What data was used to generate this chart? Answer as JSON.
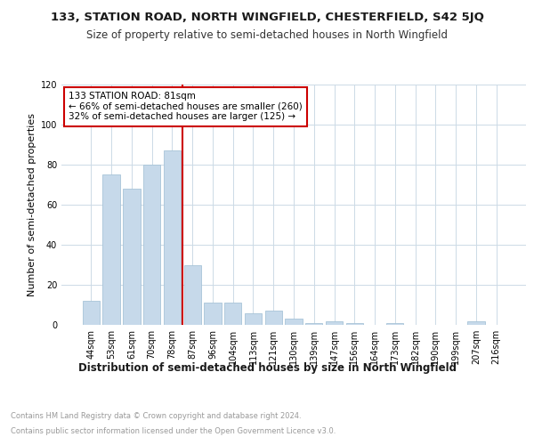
{
  "title1": "133, STATION ROAD, NORTH WINGFIELD, CHESTERFIELD, S42 5JQ",
  "title2": "Size of property relative to semi-detached houses in North Wingfield",
  "xlabel": "Distribution of semi-detached houses by size in North Wingfield",
  "ylabel": "Number of semi-detached properties",
  "categories": [
    "44sqm",
    "53sqm",
    "61sqm",
    "70sqm",
    "78sqm",
    "87sqm",
    "96sqm",
    "104sqm",
    "113sqm",
    "121sqm",
    "130sqm",
    "139sqm",
    "147sqm",
    "156sqm",
    "164sqm",
    "173sqm",
    "182sqm",
    "190sqm",
    "199sqm",
    "207sqm",
    "216sqm"
  ],
  "values": [
    12,
    75,
    68,
    80,
    87,
    30,
    11,
    11,
    6,
    7,
    3,
    1,
    2,
    1,
    0,
    1,
    0,
    0,
    0,
    2,
    0
  ],
  "bar_color": "#c6d9ea",
  "bar_edge_color": "#a8c4d8",
  "property_line_x": 4.5,
  "property_label": "133 STATION ROAD: 81sqm",
  "smaller_text": "← 66% of semi-detached houses are smaller (260)",
  "larger_text": "32% of semi-detached houses are larger (125) →",
  "annotation_box_color": "#cc0000",
  "line_color": "#cc0000",
  "ylim": [
    0,
    120
  ],
  "yticks": [
    0,
    20,
    40,
    60,
    80,
    100,
    120
  ],
  "footer1": "Contains HM Land Registry data © Crown copyright and database right 2024.",
  "footer2": "Contains public sector information licensed under the Open Government Licence v3.0.",
  "bg_color": "#ffffff",
  "grid_color": "#ccdae6",
  "title1_fontsize": 9.5,
  "title2_fontsize": 8.5,
  "xlabel_fontsize": 8.5,
  "ylabel_fontsize": 8,
  "tick_fontsize": 7,
  "annotation_fontsize": 7.5,
  "footer_fontsize": 6
}
